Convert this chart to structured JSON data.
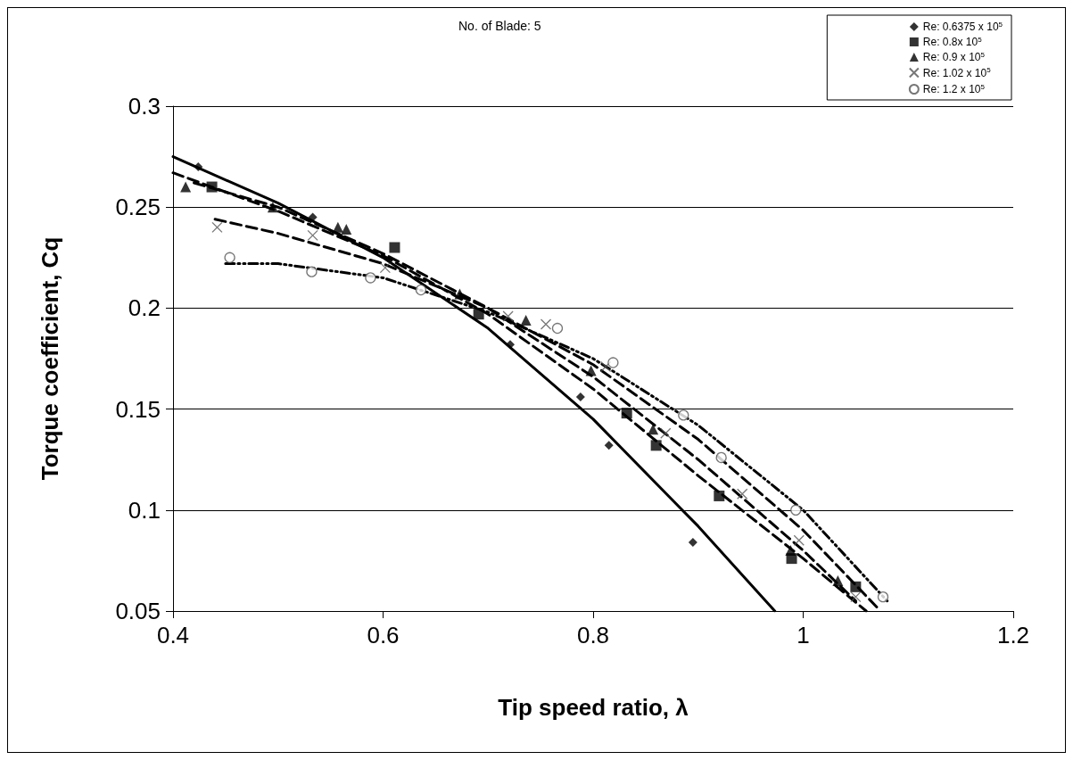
{
  "chart_data": {
    "type": "scatter",
    "title": "No. of Blade: 5",
    "xlabel": "Tip speed ratio, λ",
    "ylabel": "Torque coefficient, Cq",
    "xlim": [
      0.4,
      1.2
    ],
    "xticks": [
      0.4,
      0.6,
      0.8,
      {
        "value": 1,
        "label": "1"
      },
      1.2
    ],
    "ylim": [
      0.05,
      0.3
    ],
    "yticks": [
      0.05,
      0.1,
      0.15,
      0.2,
      0.25,
      0.3
    ],
    "grid": "y",
    "legend": "top right",
    "series": [
      {
        "name": "Re: 0.6375 x 10$^{5}$",
        "color": "#000000",
        "marker": "diamond",
        "x": [
          0.424,
          0.533,
          0.721,
          0.788,
          0.815,
          0.895
        ],
        "values": [
          0.27,
          0.245,
          0.182,
          0.156,
          0.132,
          0.084
        ]
      },
      {
        "name": "Re: 0.8x 10$^{5}$",
        "color": "#000000",
        "marker": "square",
        "x": [
          0.437,
          0.611,
          0.691,
          0.832,
          0.86,
          0.92,
          0.989,
          1.05
        ],
        "values": [
          0.26,
          0.23,
          0.197,
          0.148,
          0.132,
          0.107,
          0.076,
          0.062
        ]
      },
      {
        "name": "Re: 0.9 x 10$^{5}$",
        "color": "#000000",
        "marker": "triangle",
        "x": [
          0.412,
          0.495,
          0.557,
          0.565,
          0.673,
          0.736,
          0.798,
          0.857,
          0.988,
          1.033
        ],
        "values": [
          0.26,
          0.25,
          0.24,
          0.239,
          0.207,
          0.194,
          0.169,
          0.14,
          0.08,
          0.065
        ]
      },
      {
        "name": "Re: 1.02 x 10$^{5}$",
        "color": "#555555",
        "marker": "cross",
        "x": [
          0.442,
          0.533,
          0.602,
          0.719,
          0.755,
          0.812,
          0.869,
          0.942,
          0.996,
          1.05
        ],
        "values": [
          0.24,
          0.236,
          0.22,
          0.196,
          0.192,
          0.171,
          0.138,
          0.108,
          0.085,
          0.057
        ]
      },
      {
        "name": "Re: 1.2 x 10$^{5}$",
        "color": "#555555",
        "marker": "circle",
        "x": [
          0.454,
          0.532,
          0.588,
          0.636,
          0.766,
          0.819,
          0.886,
          0.922,
          0.993,
          1.076
        ],
        "values": [
          0.225,
          0.218,
          0.215,
          0.209,
          0.19,
          0.173,
          0.147,
          0.126,
          0.1,
          0.057
        ]
      },
      {
        "type": "line",
        "color": "#000000",
        "marker": "none",
        "line_style": "solid",
        "x": [
          0.4,
          0.5,
          0.6,
          0.7,
          0.8,
          0.9,
          0.973
        ],
        "values": [
          0.275,
          0.252,
          0.225,
          0.19,
          0.145,
          0.092,
          0.05
        ]
      },
      {
        "type": "line",
        "color": "#000000",
        "marker": "none",
        "line_style": "dashed",
        "x": [
          0.4,
          0.5,
          0.6,
          0.7,
          0.8,
          0.9,
          1.0,
          1.06
        ],
        "values": [
          0.267,
          0.248,
          0.226,
          0.197,
          0.16,
          0.117,
          0.076,
          0.05
        ]
      },
      {
        "type": "line",
        "color": "#000000",
        "marker": "none",
        "line_style": "dashed",
        "x": [
          0.42,
          0.5,
          0.6,
          0.7,
          0.8,
          0.9,
          1.0,
          1.05
        ],
        "values": [
          0.262,
          0.25,
          0.227,
          0.2,
          0.166,
          0.125,
          0.08,
          0.055
        ]
      },
      {
        "type": "line",
        "color": "#000000",
        "marker": "none",
        "line_style": "dashed",
        "x": [
          0.44,
          0.5,
          0.6,
          0.7,
          0.8,
          0.9,
          1.0,
          1.07
        ],
        "values": [
          0.244,
          0.237,
          0.222,
          0.2,
          0.172,
          0.135,
          0.09,
          0.052
        ]
      },
      {
        "type": "line",
        "color": "#000000",
        "marker": "none",
        "line_style": "dotted",
        "x": [
          0.45,
          0.5,
          0.6,
          0.7,
          0.8,
          0.9,
          1.0,
          1.08
        ],
        "values": [
          0.222,
          0.222,
          0.215,
          0.198,
          0.175,
          0.142,
          0.1,
          0.055
        ]
      }
    ]
  }
}
